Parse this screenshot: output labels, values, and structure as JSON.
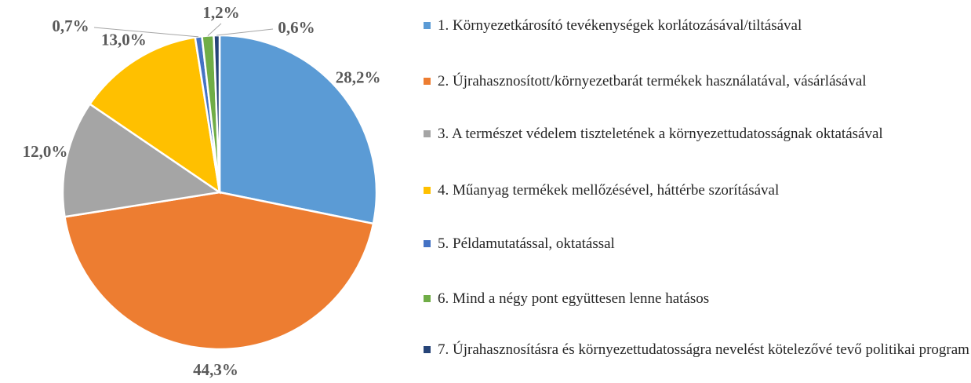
{
  "chart_data": {
    "type": "pie",
    "categories": [
      "1. Környezetkárosító tevékenységek korlátozásával/tiltásával",
      "2. Újrahasznosított/környezetbarát termékek használatával, vásárlásával",
      "3. A természet védelem tiszteletének a környezettudatosságnak oktatásával",
      "4. Műanyag termékek mellőzésével, háttérbe szorításával",
      "5. Példamutatással, oktatással",
      "6. Mind a négy pont együttesen lenne hatásos",
      "7. Újrahasznosításra és környezettudatosságra nevelést kötelezővé tevő politikai program"
    ],
    "values": [
      28.2,
      44.3,
      12.0,
      13.0,
      0.7,
      1.2,
      0.6
    ],
    "value_labels": [
      "28,2%",
      "44,3%",
      "12,0%",
      "13,0%",
      "0,7%",
      "1,2%",
      "0,6%"
    ],
    "colors": [
      "#5b9bd5",
      "#ed7d31",
      "#a5a5a5",
      "#ffc000",
      "#4472c4",
      "#70ad47",
      "#264478"
    ],
    "legend": "right"
  }
}
